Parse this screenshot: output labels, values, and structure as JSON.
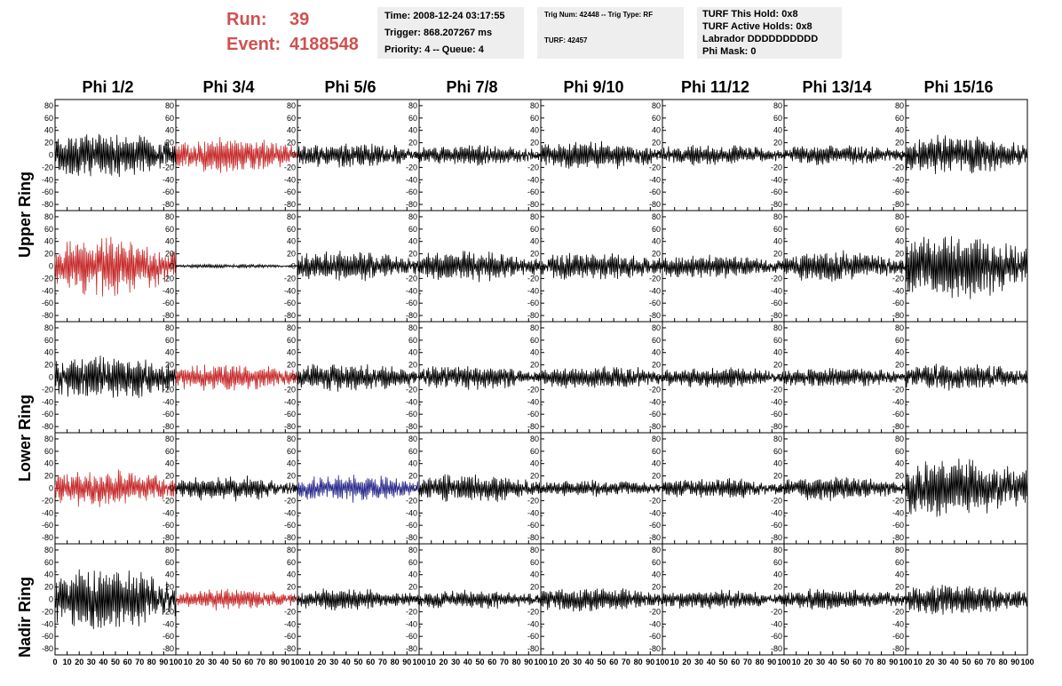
{
  "run_label": "Run:",
  "run_value": "39",
  "event_label": "Event:",
  "event_value": "4188548",
  "time_box": {
    "time": "Time: 2008-12-24 03:17:55",
    "trigger": "Trigger: 868.207267 ms",
    "priority": "Priority: 4 -- Queue: 4"
  },
  "trig_box": {
    "trig": "Trig Num: 42448 -- Trig Type: RF",
    "turf": "TURF: 42457"
  },
  "turf_box": {
    "this_hold": "TURF This Hold: 0x8",
    "active_holds": "TURF Active Holds: 0x8",
    "labrador": "Labrador DDDDDDDDDD",
    "phi_mask": "Phi Mask: 0"
  },
  "column_titles": [
    "Phi 1/2",
    "Phi 3/4",
    "Phi 5/6",
    "Phi 7/8",
    "Phi 9/10",
    "Phi 11/12",
    "Phi 13/14",
    "Phi 15/16"
  ],
  "ring_labels": [
    "Upper Ring",
    "Lower Ring",
    "Nadir Ring"
  ],
  "colors": {
    "black": "#000000",
    "red": "#c62a2a",
    "blue": "#2a2a8c",
    "info_bg": "#eeeeee",
    "run_text": "#d05050"
  },
  "chart_data": {
    "type": "line",
    "layout": "grid of waveforms, 5 rows x 8 columns",
    "xlim": [
      0,
      100
    ],
    "ylim": [
      -90,
      90
    ],
    "x_ticks": [
      0,
      10,
      20,
      30,
      40,
      50,
      60,
      70,
      80,
      90,
      100
    ],
    "y_ticks": [
      -80,
      -60,
      -40,
      -20,
      0,
      20,
      40,
      60,
      80
    ],
    "grid": false,
    "panel_amplitudes": [
      [
        35,
        25,
        18,
        15,
        20,
        15,
        15,
        28
      ],
      [
        40,
        3,
        22,
        22,
        20,
        18,
        22,
        50
      ],
      [
        32,
        20,
        20,
        18,
        18,
        15,
        15,
        20
      ],
      [
        28,
        18,
        20,
        20,
        12,
        15,
        18,
        45
      ],
      [
        45,
        15,
        16,
        14,
        18,
        14,
        16,
        22
      ]
    ],
    "panel_colors": [
      [
        "black",
        "red",
        "black",
        "black",
        "black",
        "black",
        "black",
        "black"
      ],
      [
        "red",
        "black",
        "black",
        "black",
        "black",
        "black",
        "black",
        "black"
      ],
      [
        "black",
        "red",
        "black",
        "black",
        "black",
        "black",
        "black",
        "black"
      ],
      [
        "red",
        "black",
        "blue",
        "black",
        "black",
        "black",
        "black",
        "black"
      ],
      [
        "black",
        "red",
        "black",
        "black",
        "black",
        "black",
        "black",
        "black"
      ]
    ]
  }
}
